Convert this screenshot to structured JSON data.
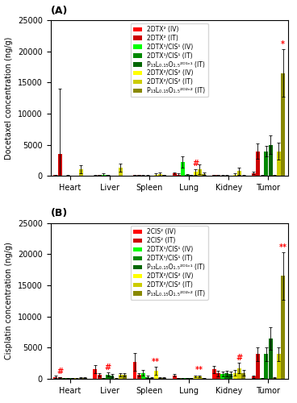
{
  "chart_data": [
    {
      "type": "bar",
      "title": "(A)",
      "ylabel": "Docetaxel concentration (ng/g)",
      "categories": [
        "Heart",
        "Liver",
        "Spleen",
        "Lung",
        "Kidney",
        "Tumor"
      ],
      "ylim": [
        0,
        25000
      ],
      "yticks": [
        0,
        5000,
        10000,
        15000,
        20000,
        25000
      ],
      "legend": "upper center",
      "series": [
        {
          "name": "2DTX² (IV)",
          "color": "#ff0000",
          "values": [
            150,
            100,
            150,
            450,
            150,
            500
          ],
          "errors": [
            80,
            50,
            80,
            180,
            80,
            200
          ]
        },
        {
          "name": "2DTX² (IT)",
          "color": "#cc0000",
          "values": [
            3500,
            150,
            150,
            250,
            150,
            4000
          ],
          "errors": [
            10500,
            80,
            80,
            150,
            80,
            1200
          ]
        },
        {
          "name": "2DTX¹/CIS¹ (IV)",
          "color": "#00ff00",
          "values": [
            80,
            250,
            80,
            2200,
            100,
            100
          ],
          "errors": [
            40,
            150,
            50,
            900,
            60,
            60
          ]
        },
        {
          "name": "2DTX¹/CIS¹ (IT)",
          "color": "#008800",
          "values": [
            100,
            150,
            120,
            250,
            120,
            4000
          ],
          "errors": [
            60,
            80,
            70,
            130,
            70,
            900
          ]
        },
        {
          "name": "P₁₃L₀.₁₅O₁.₅²ᴰ¹ᶜ¹ (IT)",
          "color": "#006600",
          "values": [
            80,
            80,
            80,
            150,
            80,
            5000
          ],
          "errors": [
            40,
            40,
            40,
            80,
            40,
            1500
          ]
        },
        {
          "name": "2DTX²/CIS² (IV)",
          "color": "#ffff00",
          "values": [
            80,
            80,
            250,
            700,
            250,
            150
          ],
          "errors": [
            40,
            40,
            150,
            450,
            150,
            80
          ]
        },
        {
          "name": "2DTX²/CIS² (IT)",
          "color": "#cccc00",
          "values": [
            1100,
            1300,
            350,
            1100,
            800,
            4000
          ],
          "errors": [
            650,
            650,
            280,
            750,
            550,
            1400
          ]
        },
        {
          "name": "P₁₃L₀.₁₅O₁.₅²ᴰ²ᶜ² (IT)",
          "color": "#888800",
          "values": [
            80,
            80,
            150,
            350,
            120,
            16500
          ],
          "errors": [
            40,
            40,
            80,
            180,
            70,
            3800
          ]
        }
      ],
      "annotations": [
        {
          "text": "*",
          "color": "red",
          "series": "P₁₃L₀.₁₅O₁.₅²ᴰ²ᶜ² (IT)",
          "category": "Tumor"
        },
        {
          "text": "#",
          "color": "red",
          "series": "2DTX²/CIS² (IV)",
          "category": "Lung"
        }
      ]
    },
    {
      "type": "bar",
      "title": "(B)",
      "ylabel": "Cisplatin concentration (ng/g)",
      "categories": [
        "Heart",
        "Liver",
        "Spleen",
        "Lung",
        "Kidney",
        "Tumor"
      ],
      "ylim": [
        0,
        25000
      ],
      "yticks": [
        0,
        5000,
        10000,
        15000,
        20000,
        25000
      ],
      "legend": "upper center",
      "series": [
        {
          "name": "2CIS² (IV)",
          "color": "#ff0000",
          "values": [
            300,
            1600,
            2700,
            550,
            1500,
            350
          ],
          "errors": [
            180,
            650,
            1400,
            180,
            550,
            180
          ]
        },
        {
          "name": "2CIS² (IT)",
          "color": "#cc0000",
          "values": [
            200,
            650,
            650,
            100,
            850,
            4000
          ],
          "errors": [
            100,
            280,
            280,
            50,
            450,
            1100
          ]
        },
        {
          "name": "2DTX¹/CIS¹ (IV)",
          "color": "#00ff00",
          "values": [
            80,
            100,
            950,
            100,
            750,
            80
          ],
          "errors": [
            40,
            50,
            450,
            50,
            380,
            40
          ]
        },
        {
          "name": "2DTX¹/CIS¹ (IT)",
          "color": "#008800",
          "values": [
            80,
            700,
            280,
            80,
            850,
            4000
          ],
          "errors": [
            40,
            280,
            180,
            40,
            450,
            1100
          ]
        },
        {
          "name": "P₁₃L₀.₁₅O₁.₅²ᴰ¹ᶜ¹ (IT)",
          "color": "#006600",
          "values": [
            80,
            550,
            180,
            80,
            750,
            6500
          ],
          "errors": [
            40,
            280,
            100,
            40,
            380,
            1800
          ]
        },
        {
          "name": "2DTX²/CIS² (IV)",
          "color": "#ffff00",
          "values": [
            80,
            100,
            1300,
            380,
            950,
            180
          ],
          "errors": [
            40,
            50,
            650,
            180,
            470,
            100
          ]
        },
        {
          "name": "2DTX²/CIS² (IT)",
          "color": "#cccc00",
          "values": [
            180,
            650,
            180,
            380,
            1700,
            4000
          ],
          "errors": [
            100,
            280,
            100,
            180,
            850,
            1100
          ]
        },
        {
          "name": "P₁₃L₀.₁₅O₁.₅²ᴰ²ᶜ² (IT)",
          "color": "#888800",
          "values": [
            180,
            650,
            180,
            80,
            950,
            16500
          ],
          "errors": [
            100,
            280,
            100,
            40,
            470,
            3800
          ]
        }
      ],
      "annotations": [
        {
          "text": "#",
          "color": "red",
          "series": "2CIS² (IT)",
          "category": "Heart"
        },
        {
          "text": "#",
          "color": "red",
          "series": "2DTX¹/CIS¹ (IT)",
          "category": "Liver"
        },
        {
          "text": "**",
          "color": "red",
          "series": "2DTX²/CIS² (IV)",
          "category": "Spleen"
        },
        {
          "text": "**",
          "color": "red",
          "series": "2DTX²/CIS² (IT)",
          "category": "Lung"
        },
        {
          "text": "#",
          "color": "red",
          "series": "2DTX²/CIS² (IT)",
          "category": "Kidney"
        },
        {
          "text": "**",
          "color": "red",
          "series": "P₁₃L₀.₁₅O₁.₅²ᴰ²ᶜ² (IT)",
          "category": "Tumor"
        }
      ]
    }
  ]
}
